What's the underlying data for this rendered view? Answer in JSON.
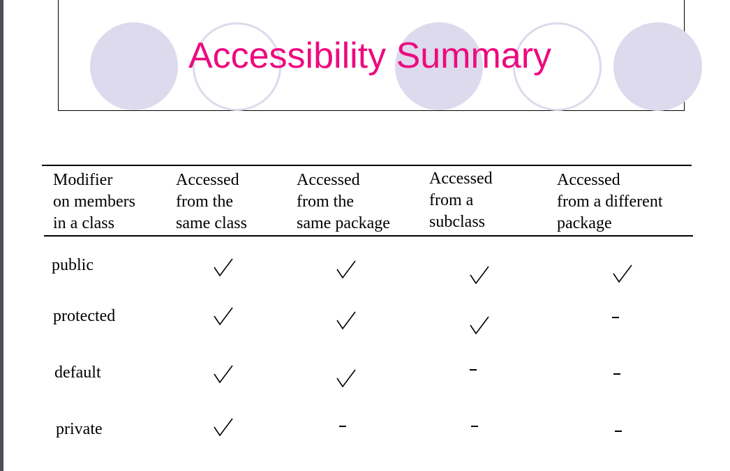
{
  "slide": {
    "title": "Accessibility Summary",
    "title_color": "#ed0a7f",
    "decor_color": "#dcdaec"
  },
  "table": {
    "headers": [
      "Modifier\non members\nin a class",
      "Accessed\nfrom the\nsame class",
      "Accessed\nfrom the\nsame package",
      "Accessed\nfrom a\nsubclass",
      "Accessed\nfrom a different\npackage"
    ],
    "rows": [
      {
        "label": "public",
        "cells": [
          "check-icon",
          "check-icon",
          "check-icon",
          "check-icon"
        ]
      },
      {
        "label": "protected",
        "cells": [
          "check-icon",
          "check-icon",
          "check-icon",
          "dash-icon"
        ]
      },
      {
        "label": "default",
        "cells": [
          "check-icon",
          "check-icon",
          "dash-icon",
          "dash-icon"
        ]
      },
      {
        "label": "private",
        "cells": [
          "check-icon",
          "dash-icon",
          "dash-icon",
          "dash-icon"
        ]
      }
    ]
  }
}
